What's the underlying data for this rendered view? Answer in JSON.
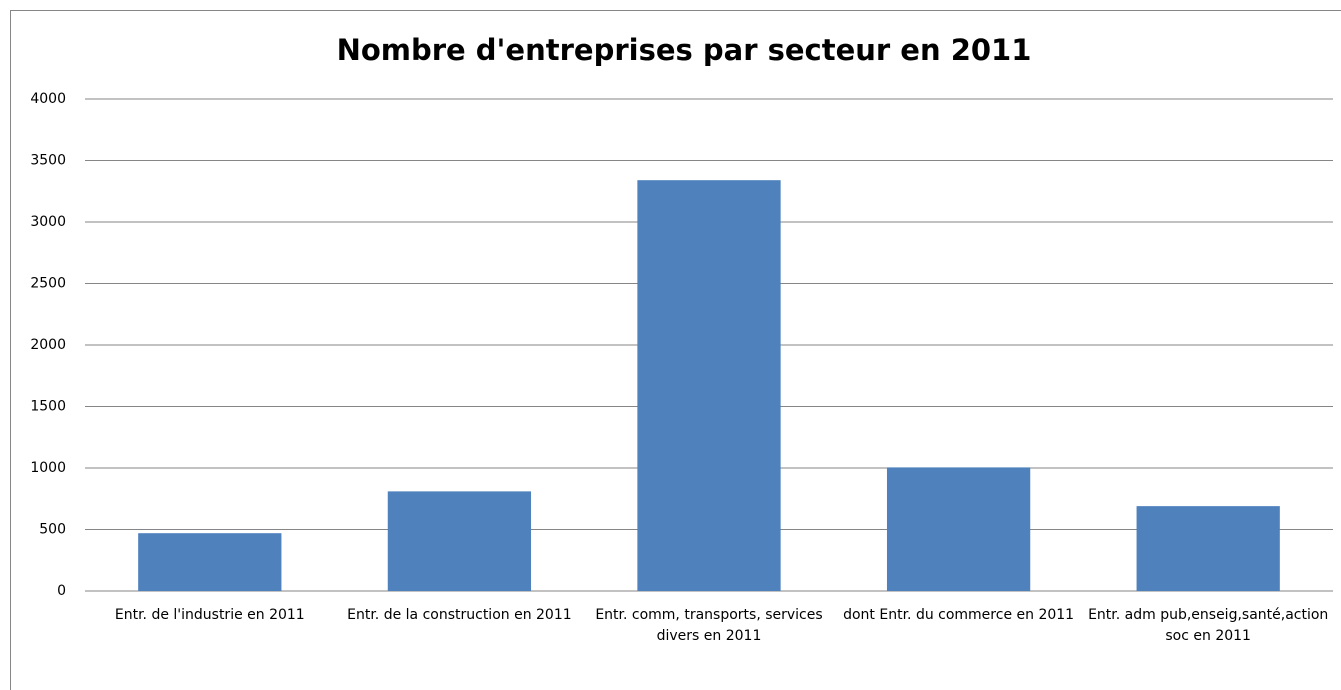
{
  "chart_data": {
    "type": "bar",
    "title": "Nombre d'entreprises par secteur en 2011",
    "categories": [
      "Entr. de l'industrie en 2011",
      "Entr. de la construction en 2011",
      "Entr. comm, transports, services divers en 2011",
      "dont Entr. du commerce en 2011",
      "Entr. adm pub,enseig,santé,action soc en 2011"
    ],
    "values": [
      470,
      810,
      3340,
      1005,
      690
    ],
    "color": "#4f81bd",
    "ylim": [
      0,
      4000
    ],
    "yticks": [
      0,
      500,
      1000,
      1500,
      2000,
      2500,
      3000,
      3500,
      4000
    ],
    "grid": true
  }
}
